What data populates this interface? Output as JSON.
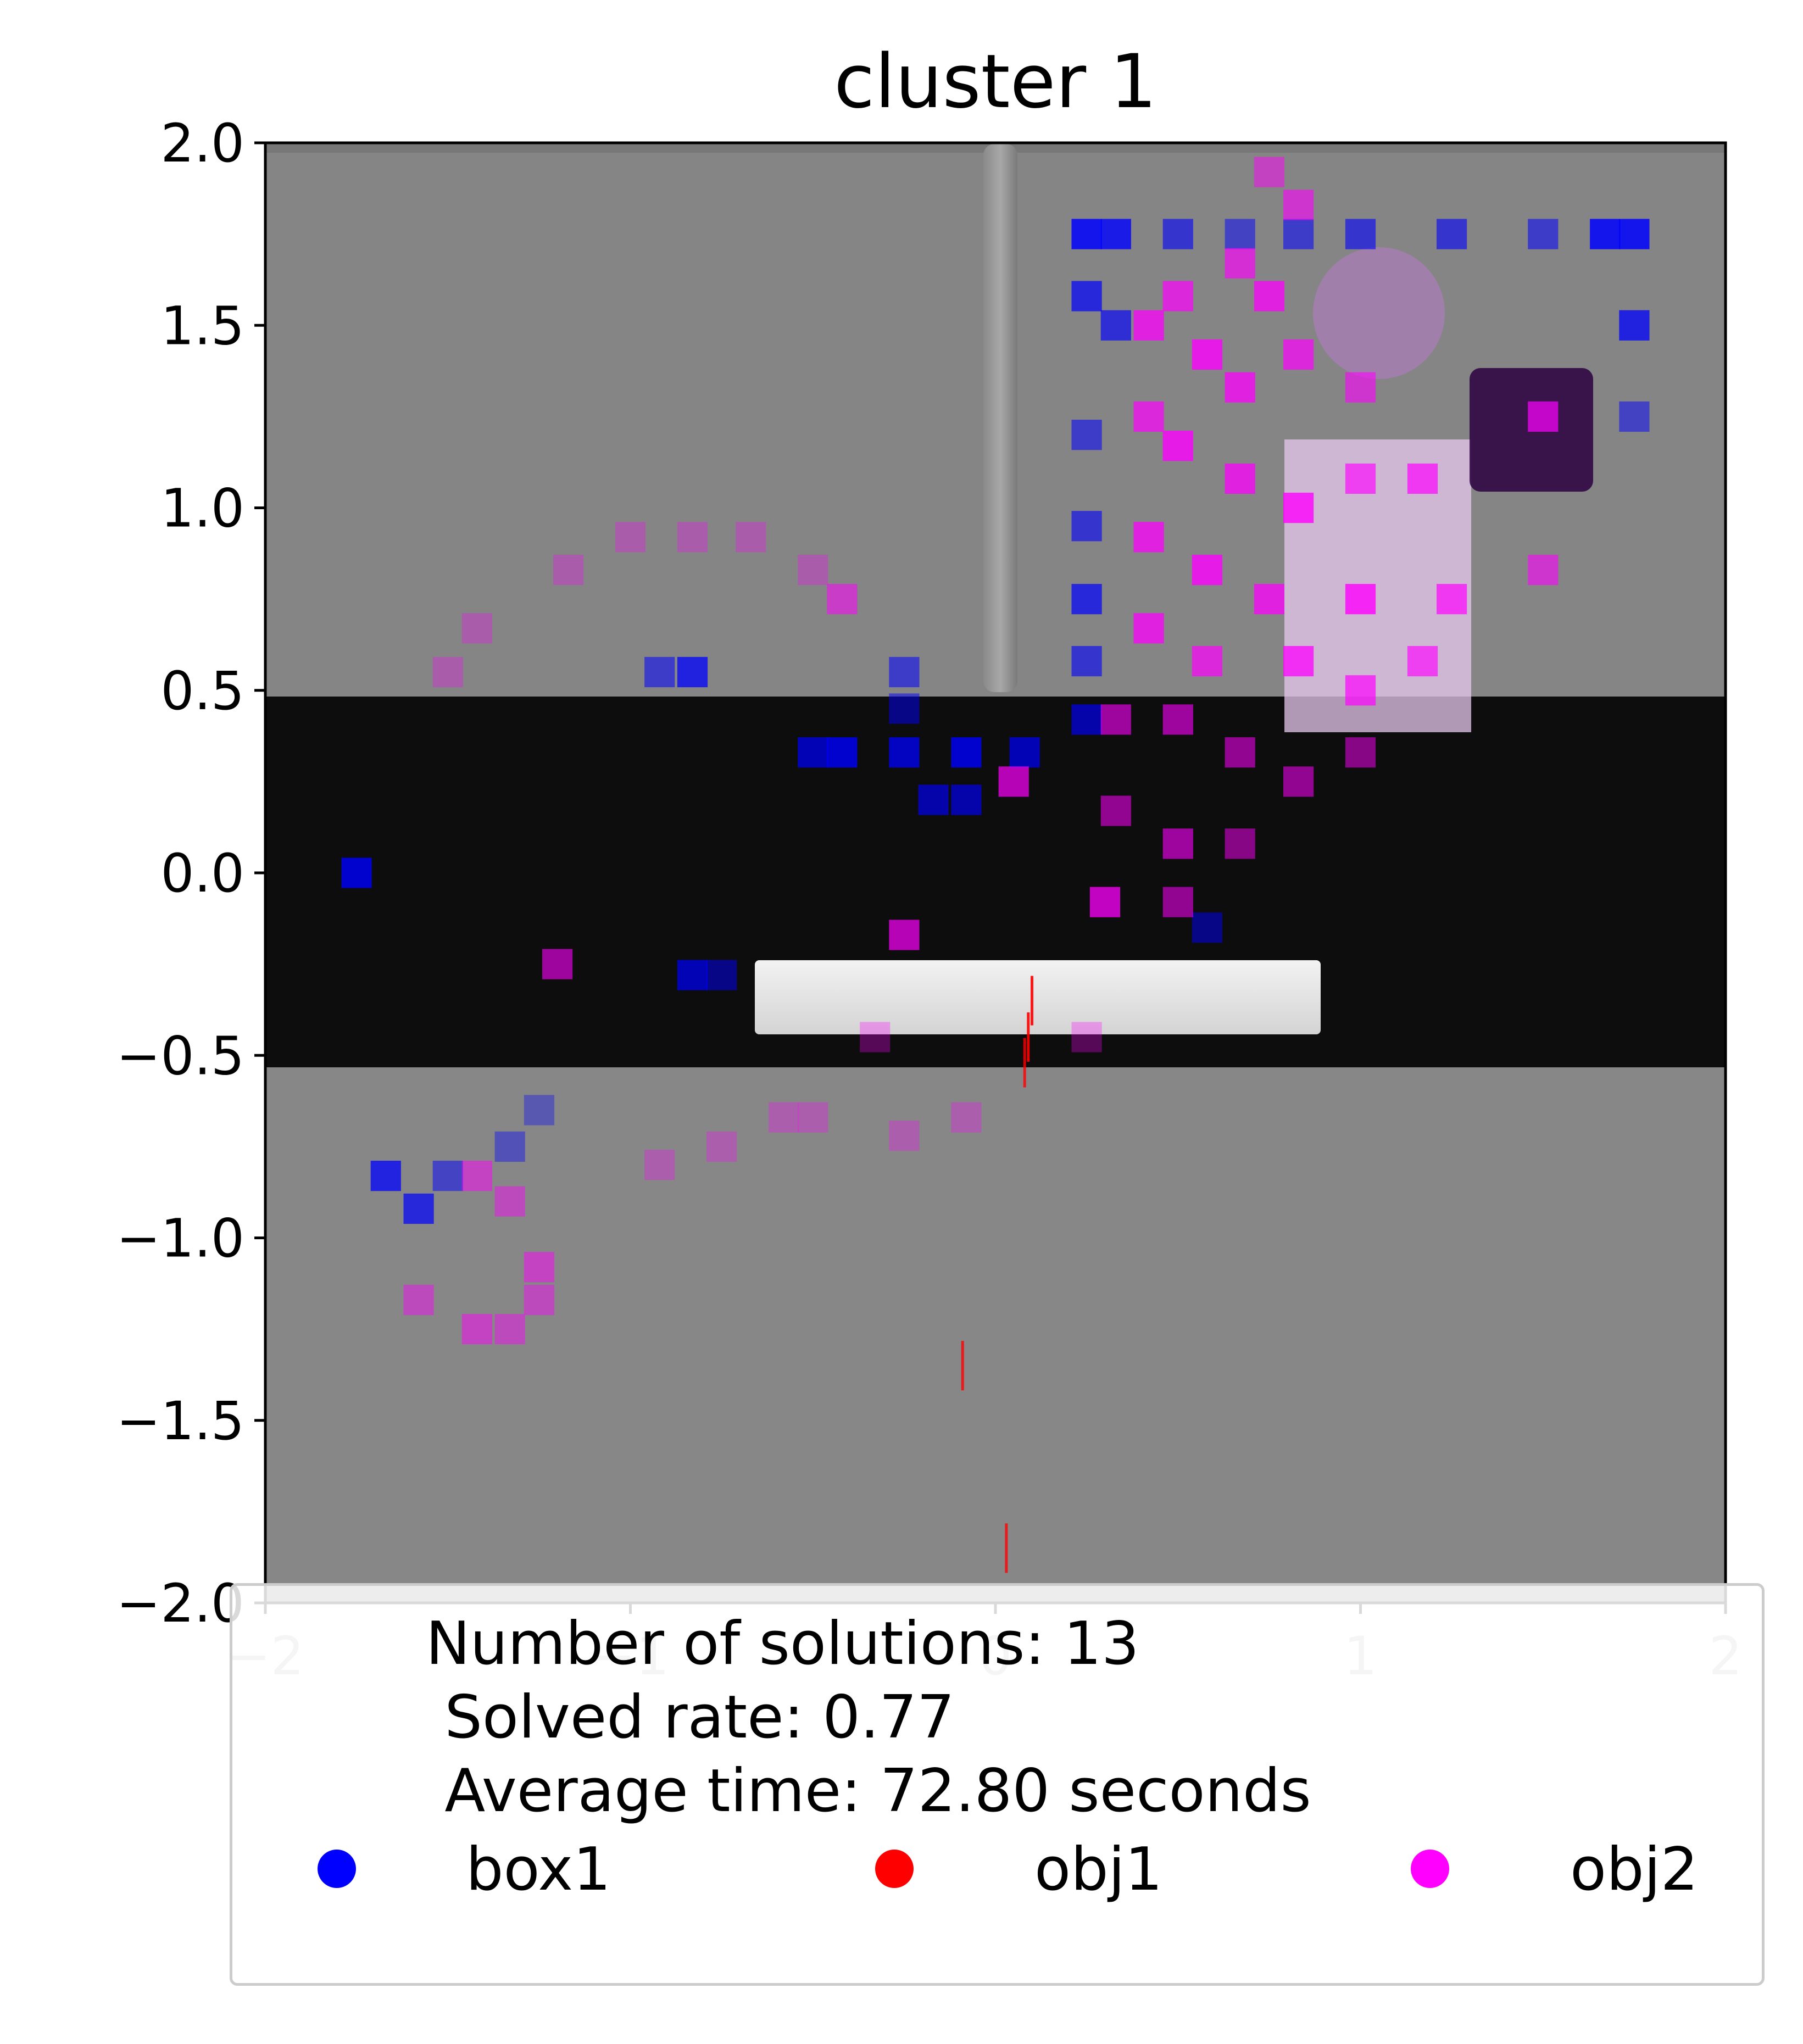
{
  "chart_data": {
    "type": "heatmap",
    "title": "cluster 1",
    "xlabel": "",
    "ylabel": "",
    "xlim": [
      -2,
      2
    ],
    "ylim": [
      -2,
      2
    ],
    "x_ticks": [
      "−2",
      "−1",
      "0",
      "1",
      "2"
    ],
    "y_ticks": [
      "2.0",
      "1.5",
      "1.0",
      "0.5",
      "0.0",
      "−0.5",
      "−1.0",
      "−1.5",
      "−2.0"
    ],
    "background_image": "rendered scene: grey floor, dark horizontal band from y=-0.53 to y=0.49, white slab near y=-0.35, vertical pole at x≈0",
    "legend": {
      "summary_lines": [
        "Number of solutions: 13",
        " Solved rate: 0.77",
        " Average time: 72.80 seconds"
      ],
      "entries": [
        {
          "name": "box1",
          "color": "#0000ff"
        },
        {
          "name": "obj1",
          "color": "#ff0000"
        },
        {
          "name": "obj2",
          "color": "#ff00ff"
        }
      ],
      "placement": "bottom, overlapping x-axis"
    },
    "series": [
      {
        "name": "box1",
        "color": "#0000ff",
        "cell_size": 0.083,
        "cells": [
          {
            "x": 0.25,
            "y": 1.75,
            "a": 0.85
          },
          {
            "x": 0.33,
            "y": 1.75,
            "a": 0.8
          },
          {
            "x": 0.5,
            "y": 1.75,
            "a": 0.6
          },
          {
            "x": 0.67,
            "y": 1.75,
            "a": 0.5
          },
          {
            "x": 0.83,
            "y": 1.75,
            "a": 0.55
          },
          {
            "x": 1.0,
            "y": 1.75,
            "a": 0.6
          },
          {
            "x": 1.25,
            "y": 1.75,
            "a": 0.6
          },
          {
            "x": 1.5,
            "y": 1.75,
            "a": 0.55
          },
          {
            "x": 1.67,
            "y": 1.75,
            "a": 0.85
          },
          {
            "x": 1.75,
            "y": 1.75,
            "a": 0.85
          },
          {
            "x": 0.25,
            "y": 1.58,
            "a": 0.7
          },
          {
            "x": 0.33,
            "y": 1.5,
            "a": 0.65
          },
          {
            "x": 1.75,
            "y": 1.5,
            "a": 0.75
          },
          {
            "x": 1.75,
            "y": 1.25,
            "a": 0.5
          },
          {
            "x": 0.25,
            "y": 1.2,
            "a": 0.55
          },
          {
            "x": 0.25,
            "y": 0.95,
            "a": 0.6
          },
          {
            "x": 0.25,
            "y": 0.75,
            "a": 0.7
          },
          {
            "x": 0.25,
            "y": 0.58,
            "a": 0.6
          },
          {
            "x": 0.25,
            "y": 0.42,
            "a": 0.65
          },
          {
            "x": 0.08,
            "y": 0.33,
            "a": 0.7
          },
          {
            "x": -0.08,
            "y": 0.33,
            "a": 0.8
          },
          {
            "x": -0.25,
            "y": 0.33,
            "a": 0.75
          },
          {
            "x": -0.42,
            "y": 0.33,
            "a": 0.8
          },
          {
            "x": -0.5,
            "y": 0.33,
            "a": 0.7
          },
          {
            "x": -0.17,
            "y": 0.2,
            "a": 0.65
          },
          {
            "x": -0.08,
            "y": 0.2,
            "a": 0.65
          },
          {
            "x": -0.25,
            "y": 0.45,
            "a": 0.5
          },
          {
            "x": -0.25,
            "y": 0.55,
            "a": 0.55
          },
          {
            "x": -0.92,
            "y": 0.55,
            "a": 0.55
          },
          {
            "x": -0.83,
            "y": 0.55,
            "a": 0.75
          },
          {
            "x": -1.75,
            "y": 0.0,
            "a": 0.8
          },
          {
            "x": 0.58,
            "y": -0.15,
            "a": 0.5
          },
          {
            "x": -0.83,
            "y": -0.28,
            "a": 0.7
          },
          {
            "x": -0.75,
            "y": -0.28,
            "a": 0.5
          },
          {
            "x": -1.67,
            "y": -0.83,
            "a": 0.75
          },
          {
            "x": -1.58,
            "y": -0.92,
            "a": 0.7
          },
          {
            "x": -1.5,
            "y": -0.83,
            "a": 0.5
          },
          {
            "x": -1.33,
            "y": -0.75,
            "a": 0.4
          },
          {
            "x": -1.25,
            "y": -0.65,
            "a": 0.35
          }
        ]
      },
      {
        "name": "obj1",
        "color": "#ff0000",
        "cell_size": 0.01,
        "cells": [
          {
            "x": 0.1,
            "y": -0.35,
            "a": 0.9
          },
          {
            "x": 0.09,
            "y": -0.45,
            "a": 0.9
          },
          {
            "x": 0.08,
            "y": -0.52,
            "a": 0.8
          },
          {
            "x": -0.09,
            "y": -1.35,
            "a": 0.8
          },
          {
            "x": 0.03,
            "y": -1.85,
            "a": 0.8
          }
        ]
      },
      {
        "name": "obj2",
        "color": "#ff00ff",
        "cell_size": 0.083,
        "cells": [
          {
            "x": 0.75,
            "y": 1.92,
            "a": 0.5
          },
          {
            "x": 0.83,
            "y": 1.83,
            "a": 0.6
          },
          {
            "x": 0.67,
            "y": 1.67,
            "a": 0.65
          },
          {
            "x": 0.75,
            "y": 1.58,
            "a": 0.75
          },
          {
            "x": 0.5,
            "y": 1.58,
            "a": 0.7
          },
          {
            "x": 0.42,
            "y": 1.5,
            "a": 0.75
          },
          {
            "x": 0.58,
            "y": 1.42,
            "a": 0.8
          },
          {
            "x": 0.67,
            "y": 1.33,
            "a": 0.75
          },
          {
            "x": 0.83,
            "y": 1.42,
            "a": 0.7
          },
          {
            "x": 1.0,
            "y": 1.33,
            "a": 0.6
          },
          {
            "x": 0.42,
            "y": 1.25,
            "a": 0.7
          },
          {
            "x": 0.5,
            "y": 1.17,
            "a": 0.8
          },
          {
            "x": 0.67,
            "y": 1.08,
            "a": 0.75
          },
          {
            "x": 0.83,
            "y": 1.0,
            "a": 0.8
          },
          {
            "x": 1.0,
            "y": 1.08,
            "a": 0.65
          },
          {
            "x": 1.17,
            "y": 1.08,
            "a": 0.7
          },
          {
            "x": 1.5,
            "y": 1.25,
            "a": 0.7
          },
          {
            "x": 0.42,
            "y": 0.92,
            "a": 0.75
          },
          {
            "x": 0.58,
            "y": 0.83,
            "a": 0.8
          },
          {
            "x": 0.75,
            "y": 0.75,
            "a": 0.75
          },
          {
            "x": 1.0,
            "y": 0.75,
            "a": 0.8
          },
          {
            "x": 1.25,
            "y": 0.75,
            "a": 0.7
          },
          {
            "x": 1.5,
            "y": 0.83,
            "a": 0.6
          },
          {
            "x": 0.42,
            "y": 0.67,
            "a": 0.75
          },
          {
            "x": 0.58,
            "y": 0.58,
            "a": 0.7
          },
          {
            "x": 0.83,
            "y": 0.58,
            "a": 0.75
          },
          {
            "x": 1.0,
            "y": 0.5,
            "a": 0.7
          },
          {
            "x": 1.17,
            "y": 0.58,
            "a": 0.65
          },
          {
            "x": 0.33,
            "y": 0.42,
            "a": 0.6
          },
          {
            "x": 0.5,
            "y": 0.42,
            "a": 0.6
          },
          {
            "x": 0.67,
            "y": 0.33,
            "a": 0.55
          },
          {
            "x": 0.83,
            "y": 0.25,
            "a": 0.55
          },
          {
            "x": 1.0,
            "y": 0.33,
            "a": 0.5
          },
          {
            "x": 0.33,
            "y": 0.17,
            "a": 0.55
          },
          {
            "x": 0.5,
            "y": 0.08,
            "a": 0.6
          },
          {
            "x": 0.67,
            "y": 0.08,
            "a": 0.5
          },
          {
            "x": 0.3,
            "y": -0.08,
            "a": 0.75
          },
          {
            "x": 0.5,
            "y": -0.08,
            "a": 0.55
          },
          {
            "x": 0.05,
            "y": 0.25,
            "a": 0.7
          },
          {
            "x": -0.25,
            "y": -0.17,
            "a": 0.7
          },
          {
            "x": -1.2,
            "y": -0.25,
            "a": 0.6
          },
          {
            "x": -1.42,
            "y": -0.83,
            "a": 0.5
          },
          {
            "x": -1.33,
            "y": -0.9,
            "a": 0.45
          },
          {
            "x": -1.58,
            "y": -1.17,
            "a": 0.45
          },
          {
            "x": -1.42,
            "y": -1.25,
            "a": 0.5
          },
          {
            "x": -1.33,
            "y": -1.25,
            "a": 0.45
          },
          {
            "x": -1.25,
            "y": -1.08,
            "a": 0.5
          },
          {
            "x": -1.25,
            "y": -1.17,
            "a": 0.45
          },
          {
            "x": -1.0,
            "y": 0.92,
            "a": 0.3
          },
          {
            "x": -0.83,
            "y": 0.92,
            "a": 0.3
          },
          {
            "x": -1.17,
            "y": 0.83,
            "a": 0.3
          },
          {
            "x": -0.67,
            "y": 0.92,
            "a": 0.3
          },
          {
            "x": -0.5,
            "y": 0.83,
            "a": 0.3
          },
          {
            "x": -0.42,
            "y": 0.75,
            "a": 0.55
          },
          {
            "x": -1.42,
            "y": 0.67,
            "a": 0.3
          },
          {
            "x": -1.5,
            "y": 0.55,
            "a": 0.3
          },
          {
            "x": -0.58,
            "y": -0.67,
            "a": 0.3
          },
          {
            "x": -0.5,
            "y": -0.67,
            "a": 0.3
          },
          {
            "x": -0.25,
            "y": -0.72,
            "a": 0.3
          },
          {
            "x": -0.08,
            "y": -0.67,
            "a": 0.3
          },
          {
            "x": -0.33,
            "y": -0.45,
            "a": 0.3
          },
          {
            "x": 0.25,
            "y": -0.45,
            "a": 0.3
          },
          {
            "x": -0.75,
            "y": -0.75,
            "a": 0.3
          },
          {
            "x": -0.92,
            "y": -0.8,
            "a": 0.3
          }
        ]
      }
    ]
  }
}
